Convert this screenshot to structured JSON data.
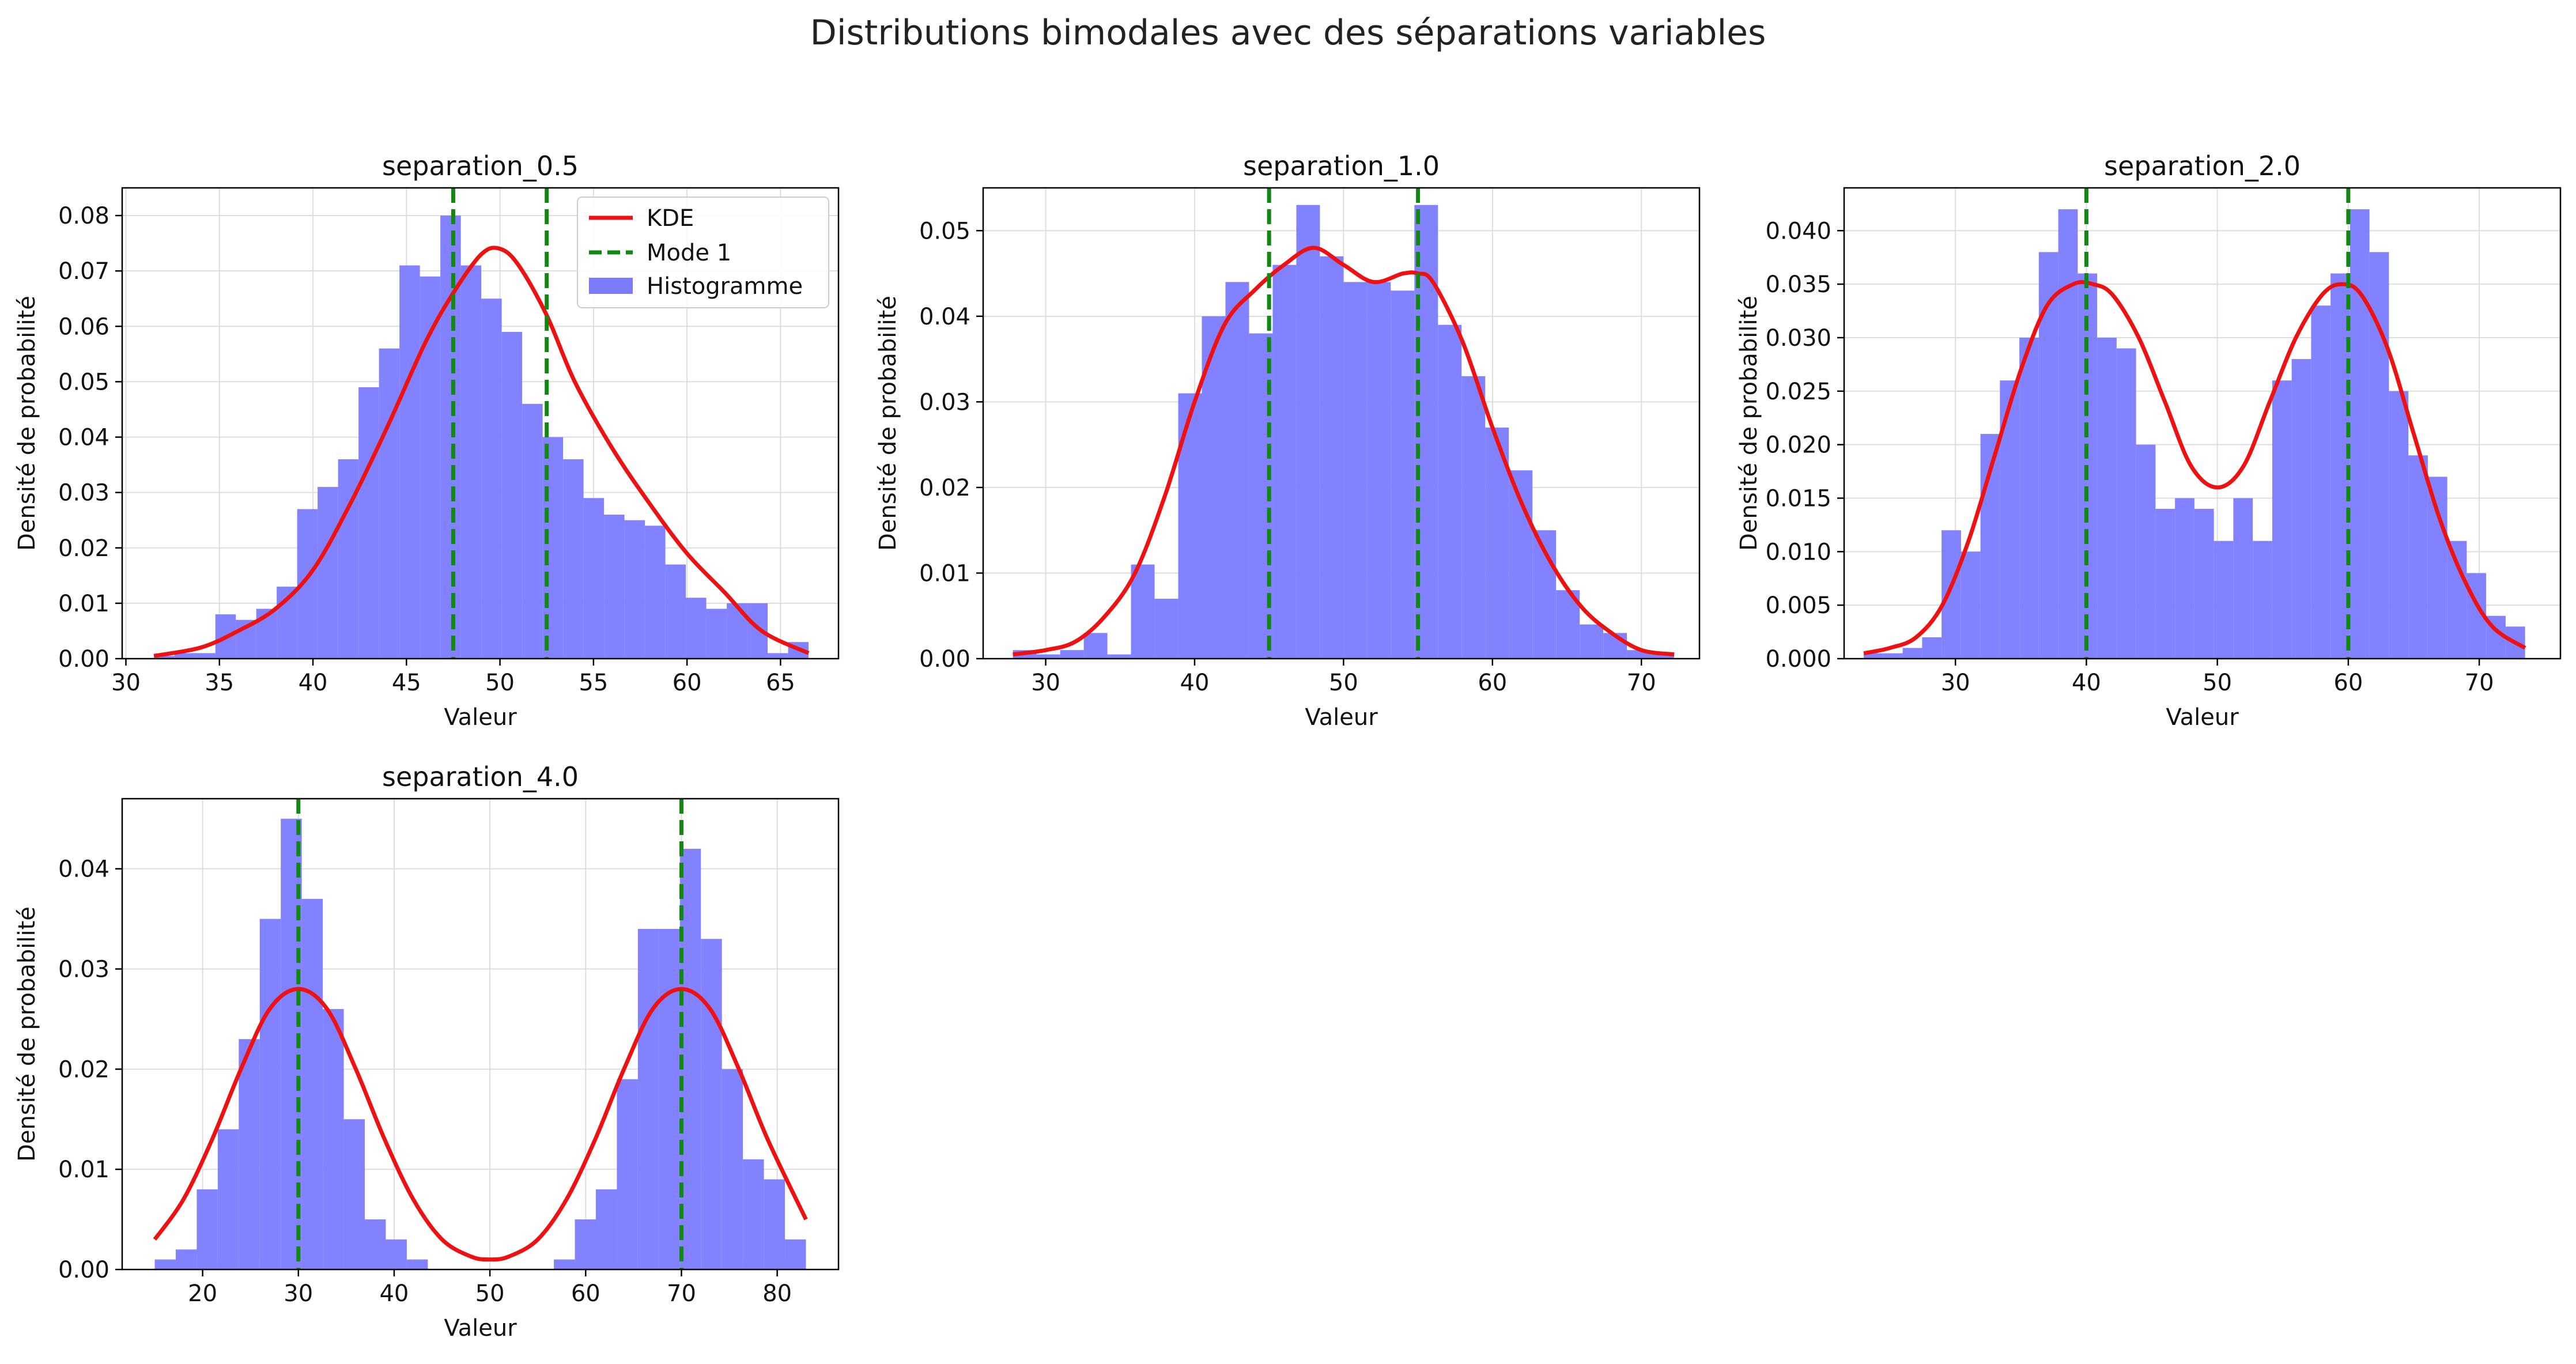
{
  "figure": {
    "title": "Distributions bimodales avec des séparations variables"
  },
  "colors": {
    "hist": "#7b7bff",
    "kde": "#ee1111",
    "mode": "#118811",
    "grid": "#dddddd"
  },
  "legend": {
    "kde": "KDE",
    "mode": "Mode 1",
    "hist": "Histogramme",
    "placement": "top-right (first panel)"
  },
  "chart_data": [
    {
      "type": "bar",
      "title": "separation_0.5",
      "xlabel": "Valeur",
      "ylabel": "Densité de probabilité",
      "xlim": [
        29.8,
        68.1
      ],
      "ylim": [
        0,
        0.085
      ],
      "xticks": [
        30,
        35,
        40,
        45,
        50,
        55,
        60,
        65
      ],
      "yticks": [
        0.0,
        0.01,
        0.02,
        0.03,
        0.04,
        0.05,
        0.06,
        0.07,
        0.08
      ],
      "ytick_decimals": 2,
      "hist_range": [
        31.5,
        66.5
      ],
      "hist_values": [
        0.0005,
        0.001,
        0.001,
        0.008,
        0.007,
        0.009,
        0.013,
        0.027,
        0.031,
        0.036,
        0.049,
        0.056,
        0.071,
        0.069,
        0.08,
        0.071,
        0.065,
        0.059,
        0.046,
        0.04,
        0.036,
        0.029,
        0.026,
        0.025,
        0.024,
        0.017,
        0.011,
        0.009,
        0.01,
        0.01,
        0.001,
        0.003
      ],
      "kde": {
        "x": [
          31.5,
          34,
          36,
          38,
          40,
          42,
          44,
          46,
          47.5,
          49,
          50,
          51,
          52.5,
          54,
          56,
          58,
          60,
          62,
          64,
          66.5
        ],
        "y": [
          0.0005,
          0.002,
          0.005,
          0.009,
          0.016,
          0.028,
          0.042,
          0.057,
          0.066,
          0.073,
          0.074,
          0.071,
          0.062,
          0.05,
          0.038,
          0.028,
          0.019,
          0.012,
          0.005,
          0.001
        ]
      },
      "modes": [
        47.5,
        52.5
      ]
    },
    {
      "type": "bar",
      "title": "separation_1.0",
      "xlabel": "Valeur",
      "ylabel": "Densité de probabilité",
      "xlim": [
        25.8,
        73.9
      ],
      "ylim": [
        0,
        0.055
      ],
      "xticks": [
        30,
        40,
        50,
        60,
        70
      ],
      "yticks": [
        0.0,
        0.01,
        0.02,
        0.03,
        0.04,
        0.05
      ],
      "ytick_decimals": 2,
      "hist_range": [
        27.8,
        72.2
      ],
      "hist_values": [
        0.001,
        0.0005,
        0.001,
        0.003,
        0.0005,
        0.011,
        0.007,
        0.031,
        0.04,
        0.044,
        0.038,
        0.046,
        0.053,
        0.047,
        0.044,
        0.044,
        0.043,
        0.053,
        0.039,
        0.033,
        0.027,
        0.022,
        0.015,
        0.008,
        0.004,
        0.003,
        0.001,
        0.0005
      ],
      "kde": {
        "x": [
          27.8,
          30,
          32,
          34,
          36,
          38,
          40,
          42,
          44,
          46,
          48,
          50,
          52,
          54,
          55,
          56,
          58,
          60,
          62,
          64,
          66,
          68,
          70,
          72.2
        ],
        "y": [
          0.0005,
          0.001,
          0.002,
          0.005,
          0.01,
          0.019,
          0.03,
          0.039,
          0.043,
          0.046,
          0.048,
          0.046,
          0.044,
          0.045,
          0.045,
          0.044,
          0.037,
          0.027,
          0.018,
          0.011,
          0.006,
          0.003,
          0.001,
          0.0005
        ]
      },
      "modes": [
        45,
        55
      ]
    },
    {
      "type": "bar",
      "title": "separation_2.0",
      "xlabel": "Valeur",
      "ylabel": "Densité de probabilité",
      "xlim": [
        21.5,
        76.2
      ],
      "ylim": [
        0,
        0.044
      ],
      "xticks": [
        30,
        40,
        50,
        60,
        70
      ],
      "yticks": [
        0.0,
        0.005,
        0.01,
        0.015,
        0.02,
        0.025,
        0.03,
        0.035,
        0.04
      ],
      "ytick_decimals": 3,
      "hist_range": [
        23.0,
        73.5
      ],
      "hist_values": [
        0.0005,
        0.0005,
        0.001,
        0.002,
        0.012,
        0.01,
        0.021,
        0.026,
        0.03,
        0.038,
        0.042,
        0.036,
        0.03,
        0.029,
        0.02,
        0.014,
        0.015,
        0.014,
        0.011,
        0.015,
        0.011,
        0.026,
        0.028,
        0.033,
        0.036,
        0.042,
        0.038,
        0.025,
        0.019,
        0.017,
        0.011,
        0.008,
        0.004,
        0.003
      ],
      "kde": {
        "x": [
          23,
          25,
          27,
          29,
          31,
          33,
          35,
          37,
          39,
          40.5,
          42,
          44,
          46,
          48,
          50,
          52,
          54,
          56,
          58,
          59.5,
          61,
          63,
          65,
          67,
          69,
          71,
          73.5
        ],
        "y": [
          0.0005,
          0.001,
          0.002,
          0.005,
          0.011,
          0.019,
          0.027,
          0.033,
          0.035,
          0.035,
          0.034,
          0.03,
          0.024,
          0.018,
          0.016,
          0.018,
          0.024,
          0.03,
          0.034,
          0.035,
          0.034,
          0.029,
          0.021,
          0.013,
          0.007,
          0.003,
          0.001
        ]
      },
      "modes": [
        40,
        60
      ]
    },
    {
      "type": "bar",
      "title": "separation_4.0",
      "xlabel": "Valeur",
      "ylabel": "Densité de probabilité",
      "xlim": [
        11.6,
        86.4
      ],
      "ylim": [
        0,
        0.047
      ],
      "xticks": [
        20,
        30,
        40,
        50,
        60,
        70,
        80
      ],
      "yticks": [
        0.0,
        0.01,
        0.02,
        0.03,
        0.04
      ],
      "ytick_decimals": 2,
      "hist_range": [
        15.0,
        83.0
      ],
      "hist_values": [
        0.001,
        0.002,
        0.008,
        0.014,
        0.023,
        0.035,
        0.045,
        0.037,
        0.026,
        0.015,
        0.005,
        0.003,
        0.001,
        0,
        0,
        0,
        0,
        0,
        0,
        0.001,
        0.005,
        0.008,
        0.019,
        0.034,
        0.034,
        0.042,
        0.033,
        0.02,
        0.011,
        0.009,
        0.003
      ],
      "kde": {
        "x": [
          15,
          18,
          21,
          24,
          27,
          30,
          33,
          36,
          39,
          42,
          45,
          48,
          50,
          52,
          55,
          58,
          61,
          64,
          67,
          70,
          73,
          76,
          79,
          83
        ],
        "y": [
          0.003,
          0.007,
          0.013,
          0.02,
          0.026,
          0.028,
          0.026,
          0.02,
          0.013,
          0.007,
          0.003,
          0.0013,
          0.001,
          0.0013,
          0.003,
          0.007,
          0.013,
          0.02,
          0.026,
          0.028,
          0.026,
          0.02,
          0.013,
          0.005
        ]
      },
      "modes": [
        30,
        70
      ]
    }
  ]
}
